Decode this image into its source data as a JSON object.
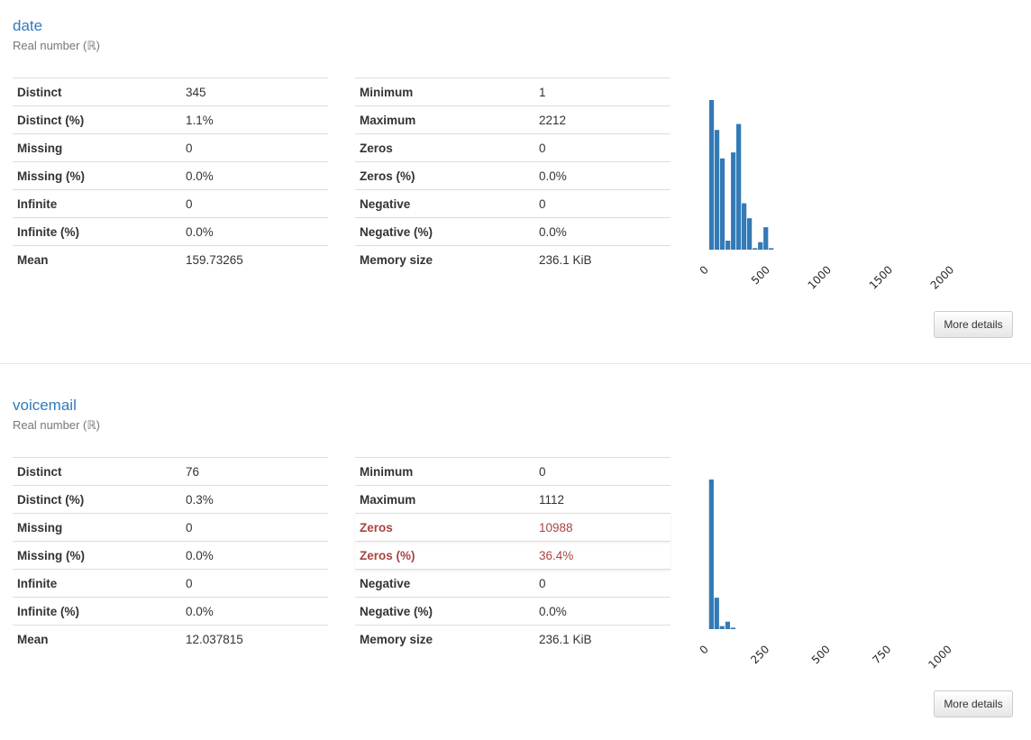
{
  "variables": [
    {
      "name": "date",
      "type": "Real number (ℝ)",
      "left_stats": [
        {
          "label": "Distinct",
          "value": "345"
        },
        {
          "label": "Distinct (%)",
          "value": "1.1%"
        },
        {
          "label": "Missing",
          "value": "0"
        },
        {
          "label": "Missing (%)",
          "value": "0.0%"
        },
        {
          "label": "Infinite",
          "value": "0"
        },
        {
          "label": "Infinite (%)",
          "value": "0.0%"
        },
        {
          "label": "Mean",
          "value": "159.73265"
        }
      ],
      "right_stats": [
        {
          "label": "Minimum",
          "value": "1"
        },
        {
          "label": "Maximum",
          "value": "2212"
        },
        {
          "label": "Zeros",
          "value": "0"
        },
        {
          "label": "Zeros (%)",
          "value": "0.0%"
        },
        {
          "label": "Negative",
          "value": "0"
        },
        {
          "label": "Negative (%)",
          "value": "0.0%"
        },
        {
          "label": "Memory size",
          "value": "236.1 KiB"
        }
      ],
      "button_label": "More details",
      "chart_data": {
        "type": "bar",
        "bar_color": "#337ab7",
        "xlim": [
          -50,
          2300
        ],
        "x_ticks": [
          "0",
          "500",
          "1000",
          "1500",
          "2000"
        ],
        "bin_width": 44.2,
        "bins": [
          {
            "x": 1,
            "v": 100
          },
          {
            "x": 45,
            "v": 80
          },
          {
            "x": 89,
            "v": 61
          },
          {
            "x": 134,
            "v": 6
          },
          {
            "x": 178,
            "v": 65
          },
          {
            "x": 222,
            "v": 84
          },
          {
            "x": 266,
            "v": 31
          },
          {
            "x": 310,
            "v": 21
          },
          {
            "x": 355,
            "v": 1
          },
          {
            "x": 399,
            "v": 5
          },
          {
            "x": 443,
            "v": 15
          },
          {
            "x": 487,
            "v": 1
          }
        ]
      }
    },
    {
      "name": "voicemail",
      "type": "Real number (ℝ)",
      "left_stats": [
        {
          "label": "Distinct",
          "value": "76"
        },
        {
          "label": "Distinct (%)",
          "value": "0.3%"
        },
        {
          "label": "Missing",
          "value": "0"
        },
        {
          "label": "Missing (%)",
          "value": "0.0%"
        },
        {
          "label": "Infinite",
          "value": "0"
        },
        {
          "label": "Infinite (%)",
          "value": "0.0%"
        },
        {
          "label": "Mean",
          "value": "12.037815"
        }
      ],
      "right_stats": [
        {
          "label": "Minimum",
          "value": "0"
        },
        {
          "label": "Maximum",
          "value": "1112"
        },
        {
          "label": "Zeros",
          "value": "10988",
          "alert": true
        },
        {
          "label": "Zeros (%)",
          "value": "36.4%",
          "alert": true
        },
        {
          "label": "Negative",
          "value": "0"
        },
        {
          "label": "Negative (%)",
          "value": "0.0%"
        },
        {
          "label": "Memory size",
          "value": "236.1 KiB"
        }
      ],
      "button_label": "More details",
      "chart_data": {
        "type": "bar",
        "bar_color": "#337ab7",
        "xlim": [
          -25,
          1160
        ],
        "x_ticks": [
          "0",
          "250",
          "500",
          "750",
          "1000"
        ],
        "bin_width": 22.2,
        "bins": [
          {
            "x": 0,
            "v": 100
          },
          {
            "x": 22,
            "v": 21
          },
          {
            "x": 44,
            "v": 2
          },
          {
            "x": 67,
            "v": 5
          },
          {
            "x": 89,
            "v": 1
          }
        ]
      }
    }
  ]
}
